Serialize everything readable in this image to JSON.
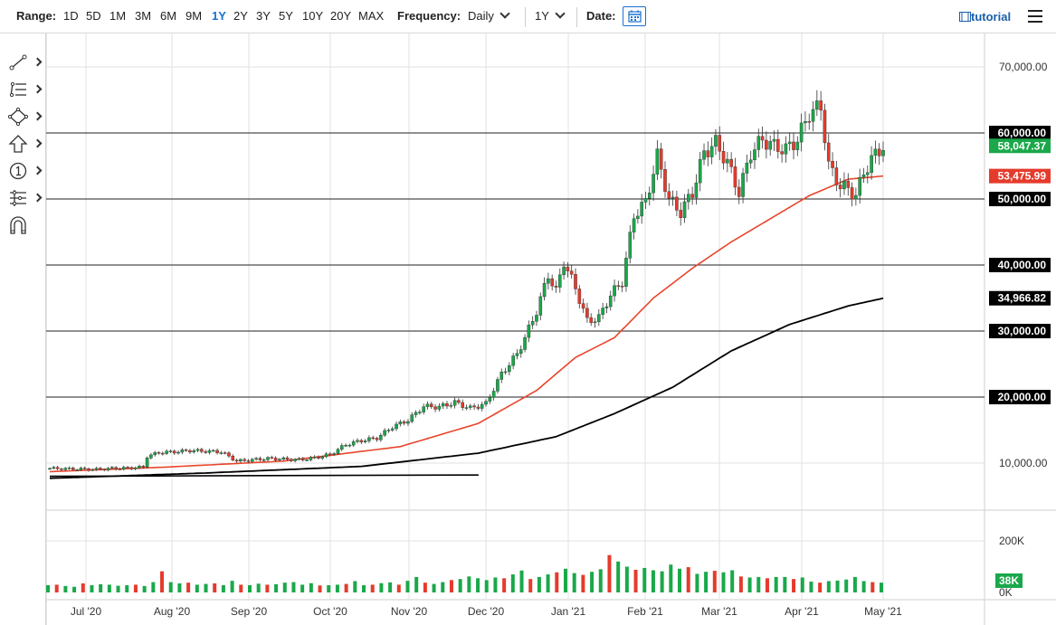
{
  "toolbar": {
    "range_label": "Range:",
    "ranges": [
      "1D",
      "5D",
      "1M",
      "3M",
      "6M",
      "9M",
      "1Y",
      "2Y",
      "3Y",
      "5Y",
      "10Y",
      "20Y",
      "MAX"
    ],
    "active_range": "1Y",
    "frequency_label": "Frequency:",
    "frequency_value": "Daily",
    "period_value": "1Y",
    "date_label": "Date:",
    "tutorial_label": "tutorial"
  },
  "tools": [
    "line-tool-icon",
    "fibonacci-tool-icon",
    "shape-tool-icon",
    "arrow-tool-icon",
    "annotation-tool-icon",
    "indicator-tool-icon",
    "magnet-tool-icon"
  ],
  "colors": {
    "up": "#1aa84a",
    "down": "#e53b2c",
    "sma50": "#e8452b",
    "sma200": "#000000",
    "grid": "#e2e2e2",
    "link": "#1a6fd0"
  },
  "chart_data": {
    "type": "candlestick",
    "y_axis": {
      "ylim": [
        5000,
        75000
      ],
      "ticks": [
        "10,000.00",
        "70,000.00"
      ],
      "gridlines": [
        10000,
        20000,
        30000,
        40000,
        50000,
        60000,
        70000
      ]
    },
    "x_axis": {
      "ticks": [
        "Jul '20",
        "Aug '20",
        "Sep '20",
        "Oct '20",
        "Nov '20",
        "Dec '20",
        "Jan '21",
        "Feb '21",
        "Mar '21",
        "Apr '21",
        "May '21"
      ]
    },
    "horizontal_levels": [
      {
        "value": 60000,
        "label": "60,000.00"
      },
      {
        "value": 50000,
        "label": "50,000.00"
      },
      {
        "value": 40000,
        "label": "40,000.00"
      },
      {
        "value": 30000,
        "label": "30,000.00"
      },
      {
        "value": 20000,
        "label": "20,000.00"
      }
    ],
    "last_price": {
      "value": 58047.37,
      "label": "58,047.37"
    },
    "sma50_last": {
      "value": 53475.99,
      "label": "53,475.99"
    },
    "sma200_last": {
      "value": 34966.82,
      "label": "34,966.82"
    },
    "close": [
      [
        0,
        9200
      ],
      [
        4,
        9150
      ],
      [
        8,
        9100
      ],
      [
        12,
        9050
      ],
      [
        16,
        9200
      ],
      [
        20,
        9250
      ],
      [
        24,
        9400
      ],
      [
        25,
        11000
      ],
      [
        28,
        11600
      ],
      [
        32,
        11700
      ],
      [
        36,
        11900
      ],
      [
        40,
        11800
      ],
      [
        44,
        11700
      ],
      [
        48,
        10300
      ],
      [
        52,
        10500
      ],
      [
        56,
        10700
      ],
      [
        60,
        10600
      ],
      [
        64,
        10500
      ],
      [
        68,
        10800
      ],
      [
        72,
        11300
      ],
      [
        76,
        12800
      ],
      [
        80,
        13400
      ],
      [
        84,
        13800
      ],
      [
        88,
        15500
      ],
      [
        92,
        16500
      ],
      [
        96,
        18600
      ],
      [
        100,
        18500
      ],
      [
        104,
        19200
      ],
      [
        108,
        18300
      ],
      [
        112,
        19000
      ],
      [
        116,
        23500
      ],
      [
        120,
        26500
      ],
      [
        122,
        29000
      ],
      [
        125,
        33000
      ],
      [
        128,
        38500
      ],
      [
        130,
        36000
      ],
      [
        132,
        40500
      ],
      [
        135,
        36500
      ],
      [
        138,
        31500
      ],
      [
        141,
        32000
      ],
      [
        144,
        35500
      ],
      [
        147,
        37500
      ],
      [
        150,
        47500
      ],
      [
        153,
        49500
      ],
      [
        156,
        56500
      ],
      [
        159,
        50000
      ],
      [
        162,
        48000
      ],
      [
        165,
        51000
      ],
      [
        168,
        57000
      ],
      [
        171,
        58500
      ],
      [
        174,
        55500
      ],
      [
        177,
        51000
      ],
      [
        180,
        57000
      ],
      [
        183,
        59000
      ],
      [
        186,
        58000
      ],
      [
        189,
        57500
      ],
      [
        192,
        59000
      ],
      [
        195,
        63000
      ],
      [
        198,
        64000
      ],
      [
        200,
        55000
      ],
      [
        203,
        52000
      ],
      [
        205,
        51500
      ],
      [
        207,
        50500
      ],
      [
        209,
        54000
      ],
      [
        211,
        56000
      ],
      [
        214,
        58047
      ]
    ],
    "sma50": [
      [
        0,
        8700
      ],
      [
        30,
        9400
      ],
      [
        60,
        10300
      ],
      [
        90,
        12500
      ],
      [
        110,
        16000
      ],
      [
        125,
        21000
      ],
      [
        135,
        26000
      ],
      [
        145,
        29000
      ],
      [
        155,
        35000
      ],
      [
        165,
        39500
      ],
      [
        175,
        43500
      ],
      [
        185,
        47000
      ],
      [
        195,
        50500
      ],
      [
        205,
        53000
      ],
      [
        214,
        53476
      ]
    ],
    "sma200": [
      [
        0,
        7700
      ],
      [
        40,
        8500
      ],
      [
        80,
        9500
      ],
      [
        110,
        11500
      ],
      [
        130,
        14000
      ],
      [
        145,
        17500
      ],
      [
        160,
        21500
      ],
      [
        175,
        27000
      ],
      [
        190,
        31000
      ],
      [
        205,
        33800
      ],
      [
        214,
        34967
      ]
    ],
    "support_line": {
      "from": [
        0,
        8000
      ],
      "to": [
        105,
        8200
      ]
    },
    "volume": {
      "ylim": [
        0,
        200000
      ],
      "ticks": [
        "200K",
        "0K"
      ],
      "last": {
        "value": 38000,
        "label": "38K"
      },
      "values": [
        28,
        30,
        25,
        22,
        35,
        28,
        32,
        30,
        26,
        28,
        30,
        25,
        40,
        82,
        40,
        35,
        38,
        30,
        33,
        35,
        28,
        45,
        30,
        28,
        34,
        30,
        32,
        38,
        40,
        30,
        36,
        27,
        28,
        30,
        33,
        44,
        28,
        30,
        36,
        39,
        30,
        45,
        60,
        38,
        33,
        40,
        48,
        52,
        62,
        55,
        48,
        58,
        55,
        70,
        85,
        52,
        60,
        70,
        78,
        92,
        75,
        68,
        80,
        90,
        145,
        120,
        100,
        88,
        95,
        86,
        82,
        108,
        92,
        98,
        72,
        80,
        84,
        78,
        86,
        62,
        58,
        60,
        55,
        60,
        60,
        52,
        58,
        42,
        38,
        44,
        46,
        50,
        60,
        44,
        40,
        38
      ]
    }
  }
}
